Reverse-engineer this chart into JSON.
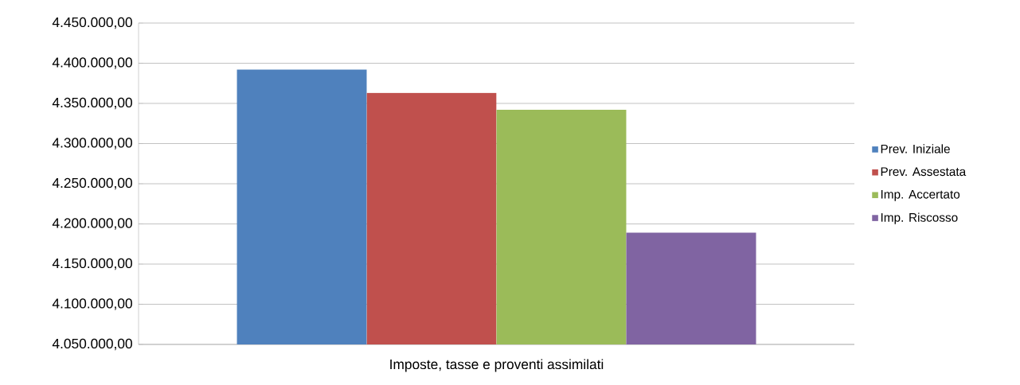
{
  "chart_data": {
    "type": "bar",
    "categories": [
      "Imposte, tasse e proventi assimilati"
    ],
    "series": [
      {
        "name": "Prev. Iniziale",
        "color": "#4f81bd",
        "values": [
          4392000
        ]
      },
      {
        "name": "Prev. Assestata",
        "color": "#c0504d",
        "values": [
          4363000
        ]
      },
      {
        "name": "Imp. Accertato",
        "color": "#9bbb59",
        "values": [
          4342000
        ]
      },
      {
        "name": "Imp. Riscosso",
        "color": "#8064a2",
        "values": [
          4189000
        ]
      }
    ],
    "ylim": [
      4050000,
      4450000
    ],
    "yticks": [
      {
        "value": 4050000,
        "label": "4.050.000,00"
      },
      {
        "value": 4100000,
        "label": "4.100.000,00"
      },
      {
        "value": 4150000,
        "label": "4.150.000,00"
      },
      {
        "value": 4200000,
        "label": "4.200.000,00"
      },
      {
        "value": 4250000,
        "label": "4.250.000,00"
      },
      {
        "value": 4300000,
        "label": "4.300.000,00"
      },
      {
        "value": 4350000,
        "label": "4.350.000,00"
      },
      {
        "value": 4400000,
        "label": "4.400.000,00"
      },
      {
        "value": 4450000,
        "label": "4.450.000,00"
      }
    ],
    "grid": "y",
    "legend": "right"
  }
}
